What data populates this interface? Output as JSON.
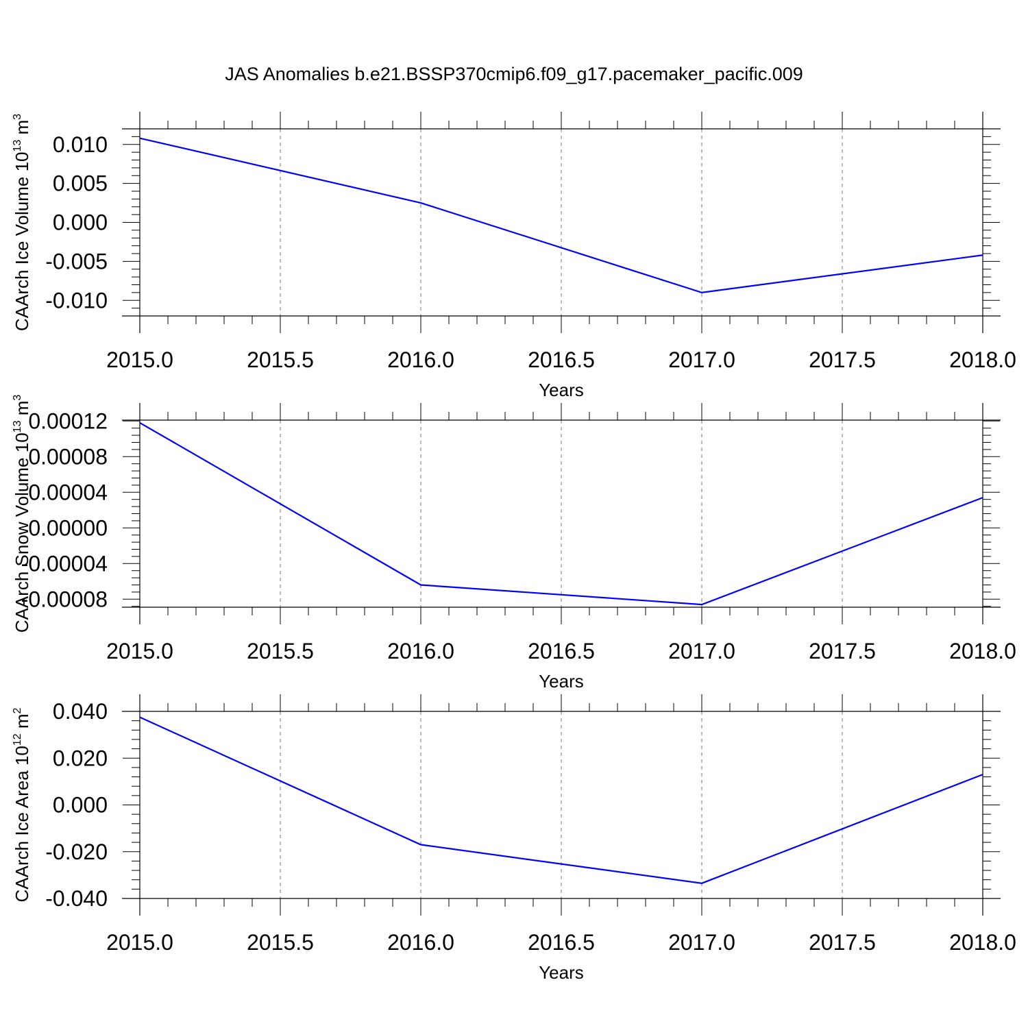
{
  "title": "JAS Anomalies b.e21.BSSP370cmip6.f09_g17.pacemaker_pacific.009",
  "chart_data": [
    {
      "type": "line",
      "xlabel": "Years",
      "ylabel": {
        "main": "CAArch Ice Volume 10",
        "exp": "13",
        "unit": " m",
        "unit_exp": "3"
      },
      "xlim": [
        2015.0,
        2018.0
      ],
      "ylim": [
        -0.012,
        0.012
      ],
      "x_ticks": [
        "2015.0",
        "2015.5",
        "2016.0",
        "2016.5",
        "2017.0",
        "2017.5",
        "2018.0"
      ],
      "y_ticks": [
        "0.010",
        "0.005",
        "0.000",
        "-0.005",
        "-0.010"
      ],
      "x": [
        2015,
        2016,
        2017,
        2018
      ],
      "series": [
        {
          "values": [
            0.0108,
            0.0025,
            -0.009,
            -0.0042
          ],
          "color": "#0000ff"
        }
      ],
      "vertical_gridlines": true,
      "grid_style": "dashed"
    },
    {
      "type": "line",
      "xlabel": "Years",
      "ylabel": {
        "main": "CAArch Snow Volume 10",
        "exp": "13",
        "unit": " m",
        "unit_exp": "3"
      },
      "xlim": [
        2015.0,
        2018.0
      ],
      "ylim": [
        -8.9e-05,
        0.000121
      ],
      "x_ticks": [
        "2015.0",
        "2015.5",
        "2016.0",
        "2016.5",
        "2017.0",
        "2017.5",
        "2018.0"
      ],
      "y_ticks": [
        "0.00012",
        "0.00008",
        "0.00004",
        "0.00000",
        "-0.00004",
        "-0.00008"
      ],
      "x": [
        2015,
        2016,
        2017,
        2018
      ],
      "series": [
        {
          "values": [
            0.000118,
            -6.4e-05,
            -8.6e-05,
            3.4e-05
          ],
          "color": "#0000ff"
        }
      ],
      "vertical_gridlines": true,
      "grid_style": "dashed"
    },
    {
      "type": "line",
      "xlabel": "Years",
      "ylabel": {
        "main": "CAArch Ice Area 10",
        "exp": "12",
        "unit": " m",
        "unit_exp": "2"
      },
      "xlim": [
        2015.0,
        2018.0
      ],
      "ylim": [
        -0.04,
        0.04
      ],
      "x_ticks": [
        "2015.0",
        "2015.5",
        "2016.0",
        "2016.5",
        "2017.0",
        "2017.5",
        "2018.0"
      ],
      "y_ticks": [
        "0.040",
        "0.020",
        "0.000",
        "-0.020",
        "-0.040"
      ],
      "x": [
        2015,
        2016,
        2017,
        2018
      ],
      "series": [
        {
          "values": [
            0.0375,
            -0.017,
            -0.0335,
            0.013
          ],
          "color": "#0000ff"
        }
      ],
      "vertical_gridlines": true,
      "grid_style": "dashed"
    }
  ]
}
